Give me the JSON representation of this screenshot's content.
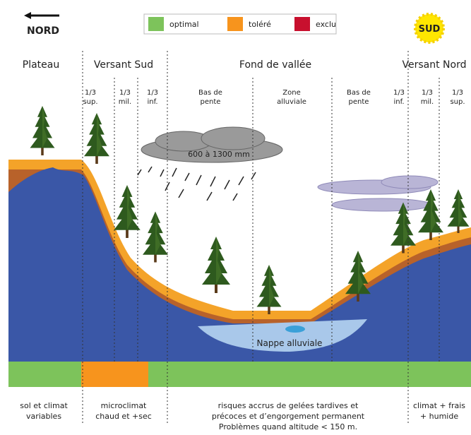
{
  "header": {
    "north": "NORD",
    "south": "SUD",
    "legend": [
      {
        "label": "optimal",
        "color": "#7dc35b"
      },
      {
        "label": "toléré",
        "color": "#f7941d"
      },
      {
        "label": "exclu",
        "color": "#c8102e"
      }
    ]
  },
  "zones": [
    "Plateau",
    "Versant Sud",
    "Fond de vallée",
    "Versant Nord"
  ],
  "subzones": [
    [
      "1/3",
      "sup."
    ],
    [
      "1/3",
      "mil."
    ],
    [
      "1/3",
      "inf."
    ],
    [
      "Bas de",
      "pente"
    ],
    [
      "Zone",
      "alluviale"
    ],
    [
      "Bas de",
      "pente"
    ],
    [
      "1/3",
      "inf."
    ],
    [
      "1/3",
      "mil."
    ],
    [
      "1/3",
      "sup."
    ]
  ],
  "annotations": {
    "rainfall": "600 à 1300 mm",
    "water_table": "Nappe alluviale"
  },
  "footer": [
    [
      "sol et climat",
      "variables"
    ],
    [
      "microclimat",
      "chaud et +sec"
    ],
    [
      "risques accrus de gelées tardives et",
      "précoces et d’engorgement permanent",
      "Problèmes quand altitude < 150 m."
    ],
    [
      "climat + frais",
      "+ humide"
    ]
  ]
}
